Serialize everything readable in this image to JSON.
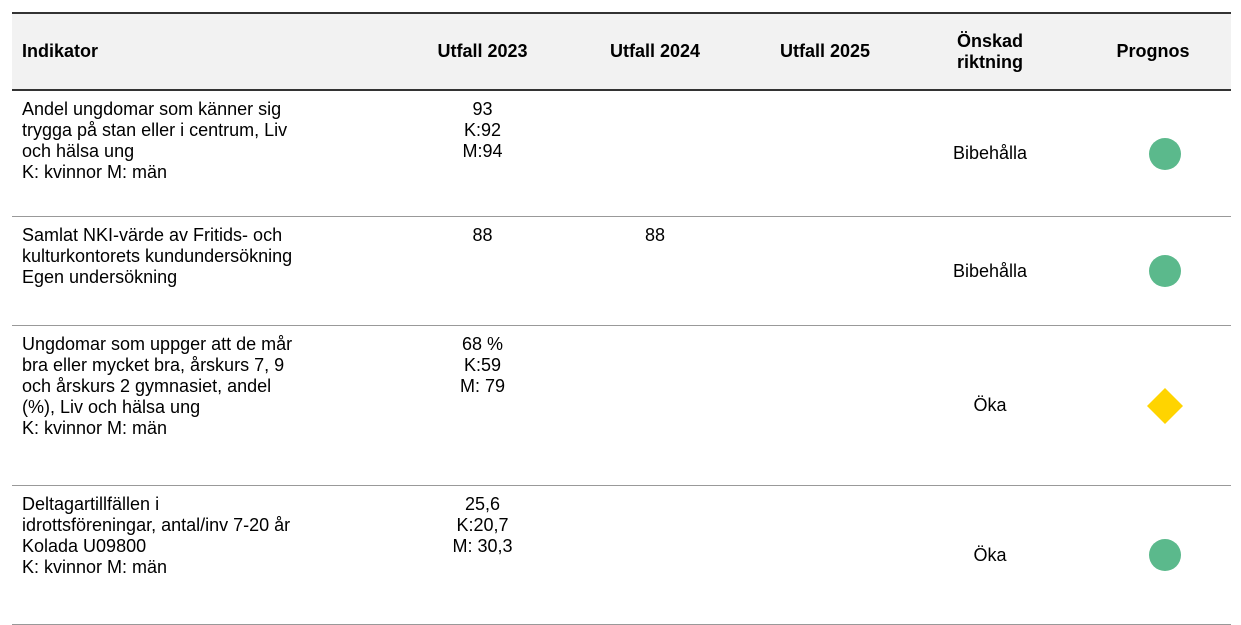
{
  "table": {
    "headers": [
      "Indikator",
      "Utfall 2023",
      "Utfall 2024",
      "Utfall 2025",
      [
        "Önskad",
        "riktning"
      ],
      "Prognos"
    ],
    "rows": [
      {
        "indikator": [
          "Andel ungdomar som känner sig",
          "trygga på stan eller i centrum, Liv",
          "och hälsa ung",
          "K: kvinnor M: män"
        ],
        "utfall_2023": [
          "93",
          "K:92",
          "M:94"
        ],
        "utfall_2024": null,
        "utfall_2025": null,
        "riktning": "Bibehålla",
        "prognos": {
          "shape": "circle",
          "color": "#5bb98c"
        }
      },
      {
        "indikator": [
          "Samlat NKI-värde av Fritids- och",
          "kulturkontorets kundundersökning",
          "Egen undersökning"
        ],
        "utfall_2023": [
          "88"
        ],
        "utfall_2024": [
          "88"
        ],
        "utfall_2025": null,
        "riktning": "Bibehålla",
        "prognos": {
          "shape": "circle",
          "color": "#5bb98c"
        }
      },
      {
        "indikator": [
          "Ungdomar som uppger att de mår",
          "bra eller mycket bra, årskurs 7, 9",
          "och årskurs 2 gymnasiet, andel",
          "(%), Liv och hälsa ung",
          "K: kvinnor M: män"
        ],
        "utfall_2023": [
          "68 %",
          "K:59",
          "M: 79"
        ],
        "utfall_2024": null,
        "utfall_2025": null,
        "riktning": "Öka",
        "prognos": {
          "shape": "diamond",
          "color": "#ffd400"
        }
      },
      {
        "indikator": [
          "Deltagartillfällen i",
          "idrottsföreningar, antal/inv 7-20 år",
          "Kolada U09800",
          "K: kvinnor M: män"
        ],
        "utfall_2023": [
          "25,6",
          "K:20,7",
          "M: 30,3"
        ],
        "utfall_2024": null,
        "utfall_2025": null,
        "riktning": "Öka",
        "prognos": {
          "shape": "circle",
          "color": "#5bb98c"
        }
      }
    ]
  }
}
